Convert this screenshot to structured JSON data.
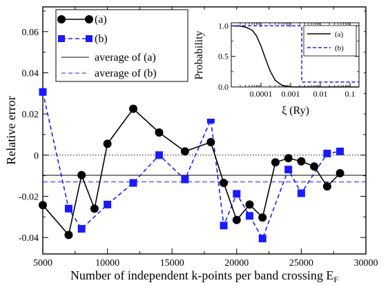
{
  "chart_data": [
    {
      "type": "line",
      "xlabel": "Number of independent k-points per band crossing E",
      "xlabel_subscript": "F",
      "ylabel": "Relative error",
      "xlim": [
        5000,
        30000
      ],
      "ylim": [
        -0.048,
        0.072
      ],
      "xticks": [
        5000,
        10000,
        15000,
        20000,
        25000,
        30000
      ],
      "xtick_labels": [
        "5000",
        "10000",
        "15000",
        "20000",
        "25000",
        "30000"
      ],
      "yticks": [
        -0.04,
        -0.02,
        0,
        0.02,
        0.04,
        0.06
      ],
      "ytick_labels": [
        "-0.04",
        "-0.02",
        "0",
        "0.02",
        "0.04",
        "0.06"
      ],
      "zero_line": "dotted",
      "legend_position": "top-left",
      "series": [
        {
          "name": "(a)",
          "style": "solid",
          "marker": "circle",
          "color": "#000000",
          "x": [
            5000,
            7000,
            8000,
            9000,
            10000,
            12000,
            14000,
            16000,
            18000,
            19000,
            20000,
            21000,
            22000,
            23000,
            24000,
            25000,
            26000,
            27000,
            28000
          ],
          "y": [
            -0.0243,
            -0.0388,
            -0.0097,
            -0.026,
            0.0055,
            0.0225,
            0.011,
            0.0018,
            0.0063,
            -0.0135,
            -0.0315,
            -0.024,
            -0.0303,
            -0.0035,
            -0.0015,
            -0.003,
            -0.0055,
            -0.0152,
            -0.0088
          ]
        },
        {
          "name": "(b)",
          "style": "dashed",
          "marker": "square",
          "color": "#1a1aff",
          "x": [
            5000,
            7000,
            8000,
            10000,
            12000,
            14000,
            16000,
            18000,
            19000,
            20000,
            21000,
            22000,
            24000,
            25000,
            27000,
            28000
          ],
          "y": [
            0.0307,
            -0.026,
            -0.0358,
            -0.024,
            -0.0135,
            0.0,
            -0.0118,
            0.0172,
            -0.0342,
            -0.0188,
            -0.0295,
            -0.0405,
            -0.007,
            -0.0185,
            0.0008,
            0.0018
          ]
        },
        {
          "name": "average of (a)",
          "style": "solid",
          "color": "#000000",
          "constant": -0.0098
        },
        {
          "name": "average of (b)",
          "style": "dashed",
          "color": "#1a1aff",
          "constant": -0.013
        }
      ]
    },
    {
      "type": "line",
      "inset": true,
      "xlabel": "ξ  (Ry)",
      "ylabel": "Probability",
      "xscale": "log",
      "xlim": [
        1e-05,
        0.2
      ],
      "ylim": [
        0,
        1.05
      ],
      "xtick_labels": [
        "0.0001",
        "0.001",
        "0.01",
        "0.1"
      ],
      "ytick_labels": [
        "0.0",
        "0.5",
        "1.0"
      ],
      "legend_position": "top-right",
      "series": [
        {
          "name": "(a)",
          "style": "solid",
          "color": "#000000",
          "x": [
            1e-05,
            2e-05,
            3e-05,
            5e-05,
            7e-05,
            0.0001,
            0.00014,
            0.0002,
            0.0003,
            0.0005,
            0.0007,
            0.001,
            0.002,
            0.005,
            0.01,
            0.05,
            0.2
          ],
          "y": [
            1.0,
            0.995,
            0.98,
            0.93,
            0.84,
            0.67,
            0.47,
            0.27,
            0.11,
            0.03,
            0.01,
            0.0,
            0.0,
            0.0,
            0.0,
            0.0,
            0.0
          ]
        },
        {
          "name": "(b)",
          "style": "dashed",
          "color": "#1a1aff",
          "x": [
            1e-05,
            0.00236,
            0.00236,
            0.2
          ],
          "y": [
            1.0,
            1.0,
            0.08,
            0.08
          ]
        }
      ]
    }
  ]
}
